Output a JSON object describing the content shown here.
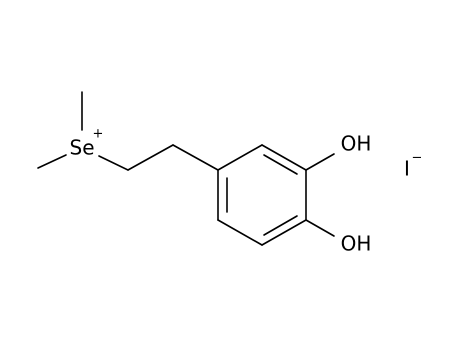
{
  "atoms": {
    "selenium": {
      "symbol": "Se",
      "charge": "+"
    },
    "hydroxyl_top": "OH",
    "hydroxyl_bottom": "OH",
    "iodide": {
      "symbol": "I",
      "charge": "−"
    }
  }
}
